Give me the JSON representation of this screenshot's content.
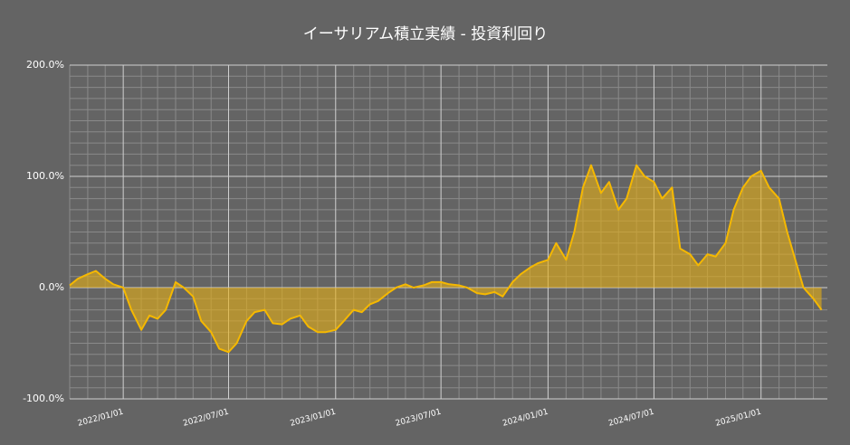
{
  "chart_data": {
    "type": "area",
    "title": "イーサリアム積立実績  -  投資利回り",
    "x": [
      "2021/10/01",
      "2021/10/15",
      "2021/11/01",
      "2021/11/15",
      "2021/12/01",
      "2021/12/15",
      "2022/01/01",
      "2022/01/15",
      "2022/02/01",
      "2022/02/15",
      "2022/03/01",
      "2022/03/15",
      "2022/04/01",
      "2022/04/15",
      "2022/05/01",
      "2022/05/15",
      "2022/06/01",
      "2022/06/15",
      "2022/07/01",
      "2022/07/15",
      "2022/08/01",
      "2022/08/15",
      "2022/09/01",
      "2022/09/15",
      "2022/10/01",
      "2022/10/15",
      "2022/11/01",
      "2022/11/15",
      "2022/12/01",
      "2022/12/15",
      "2023/01/01",
      "2023/01/15",
      "2023/02/01",
      "2023/02/15",
      "2023/03/01",
      "2023/03/15",
      "2023/04/01",
      "2023/04/15",
      "2023/05/01",
      "2023/05/15",
      "2023/06/01",
      "2023/06/15",
      "2023/07/01",
      "2023/07/15",
      "2023/08/01",
      "2023/08/15",
      "2023/09/01",
      "2023/09/15",
      "2023/10/01",
      "2023/10/15",
      "2023/11/01",
      "2023/11/15",
      "2023/12/01",
      "2023/12/15",
      "2024/01/01",
      "2024/01/15",
      "2024/02/01",
      "2024/02/15",
      "2024/03/01",
      "2024/03/15",
      "2024/04/01",
      "2024/04/15",
      "2024/05/01",
      "2024/05/15",
      "2024/06/01",
      "2024/06/15",
      "2024/07/01",
      "2024/07/15",
      "2024/08/01",
      "2024/08/15",
      "2024/09/01",
      "2024/09/15",
      "2024/10/01",
      "2024/10/15",
      "2024/11/01",
      "2024/11/15",
      "2024/12/01",
      "2024/12/15",
      "2025/01/01",
      "2025/01/15",
      "2025/02/01",
      "2025/02/15",
      "2025/03/01",
      "2025/03/15",
      "2025/04/01",
      "2025/04/15"
    ],
    "series": [
      {
        "color": "#f5b800",
        "fill": "rgba(230,175,20,0.6)",
        "values": [
          2,
          8,
          12,
          15,
          8,
          3,
          0,
          -20,
          -38,
          -25,
          -28,
          -20,
          5,
          0,
          -8,
          -30,
          -40,
          -55,
          -58,
          -50,
          -30,
          -22,
          -20,
          -32,
          -33,
          -28,
          -25,
          -35,
          -40,
          -40,
          -38,
          -30,
          -20,
          -22,
          -15,
          -12,
          -5,
          0,
          3,
          0,
          2,
          5,
          5,
          3,
          2,
          0,
          -5,
          -6,
          -4,
          -8,
          5,
          12,
          18,
          22,
          25,
          40,
          25,
          50,
          90,
          110,
          85,
          95,
          70,
          80,
          110,
          100,
          95,
          80,
          90,
          35,
          30,
          20,
          30,
          28,
          40,
          70,
          90,
          100,
          105,
          90,
          80,
          50,
          25,
          0,
          -10,
          -20
        ]
      }
    ],
    "xlim": [
      "2021/10/01",
      "2025/04/25"
    ],
    "xticks": [
      "2022/01/01",
      "2022/07/01",
      "2023/01/01",
      "2023/07/01",
      "2024/01/01",
      "2024/07/01",
      "2025/01/01"
    ],
    "xminorticks": [
      "2021/10/01",
      "2021/11/01",
      "2021/12/01",
      "2022/02/01",
      "2022/03/01",
      "2022/04/01",
      "2022/05/01",
      "2022/06/01",
      "2022/08/01",
      "2022/09/01",
      "2022/10/01",
      "2022/11/01",
      "2022/12/01",
      "2023/02/01",
      "2023/03/01",
      "2023/04/01",
      "2023/05/01",
      "2023/06/01",
      "2023/08/01",
      "2023/09/01",
      "2023/10/01",
      "2023/11/01",
      "2023/12/01",
      "2024/02/01",
      "2024/03/01",
      "2024/04/01",
      "2024/05/01",
      "2024/06/01",
      "2024/08/01",
      "2024/09/01",
      "2024/10/01",
      "2024/11/01",
      "2024/12/01",
      "2025/02/01",
      "2025/03/01",
      "2025/04/01"
    ],
    "ylim": [
      -100,
      200
    ],
    "yticks": [
      {
        "value": -100,
        "label": "-100.0%"
      },
      {
        "value": 0,
        "label": "0.0%"
      },
      {
        "value": 100,
        "label": "100.0%"
      },
      {
        "value": 200,
        "label": "200.0%"
      }
    ],
    "yminorticks": [
      -90,
      -80,
      -70,
      -60,
      -50,
      -40,
      -30,
      -20,
      -10,
      10,
      20,
      30,
      40,
      50,
      60,
      70,
      80,
      90,
      110,
      120,
      130,
      140,
      150,
      160,
      170,
      180,
      190
    ],
    "grid": true
  }
}
